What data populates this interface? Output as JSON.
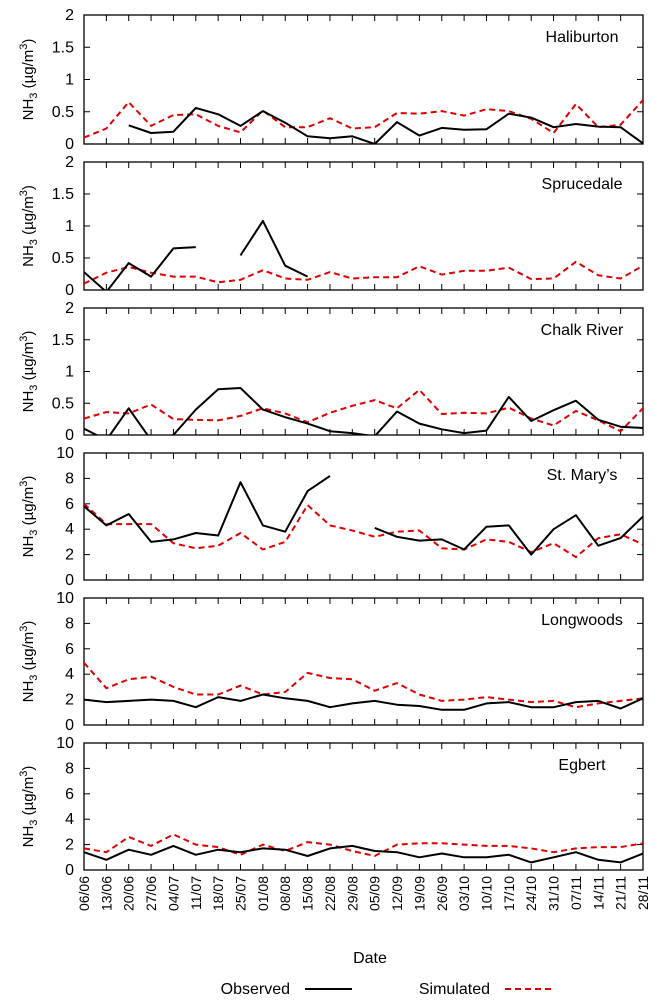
{
  "chart_data": {
    "type": "line",
    "x": [
      "06/06",
      "13/06",
      "20/06",
      "27/06",
      "04/07",
      "11/07",
      "18/07",
      "25/07",
      "01/08",
      "08/08",
      "15/08",
      "22/08",
      "29/08",
      "05/09",
      "12/09",
      "19/09",
      "26/09",
      "03/10",
      "10/10",
      "17/10",
      "24/10",
      "31/10",
      "07/11",
      "14/11",
      "21/11",
      "28/11"
    ],
    "xlabel": "Date",
    "legend": {
      "position": "bottom",
      "series": [
        {
          "name": "Observed",
          "color": "#000000",
          "dash": "solid"
        },
        {
          "name": "Simulated",
          "color": "#dd0000",
          "dash": "dashed"
        }
      ]
    },
    "panels": [
      {
        "site": "Haliburton",
        "ylabel_main": "NH",
        "ylabel_sub": "3",
        "ylabel_unit": " (µg/m",
        "ylabel_sup": "3",
        "ylabel_close": ")",
        "ylim": [
          0,
          2
        ],
        "yticks": [
          "0",
          "0.5",
          "1",
          "1.5",
          "2"
        ],
        "yvals": [
          0,
          0.5,
          1,
          1.5,
          2
        ],
        "observed": [
          null,
          null,
          0.29,
          0.17,
          0.19,
          0.56,
          0.46,
          0.28,
          0.51,
          0.33,
          0.12,
          0.09,
          0.12,
          0,
          0.34,
          0.13,
          0.25,
          0.22,
          0.23,
          0.47,
          0.41,
          0.26,
          0.31,
          0.27,
          0.26,
          0.01
        ],
        "simulated": [
          0.1,
          0.24,
          0.65,
          0.28,
          0.45,
          0.46,
          0.28,
          0.18,
          0.52,
          0.26,
          0.26,
          0.4,
          0.24,
          0.26,
          0.48,
          0.47,
          0.51,
          0.44,
          0.54,
          0.51,
          0.39,
          0.17,
          0.62,
          0.26,
          0.3,
          0.68
        ]
      },
      {
        "site": "Sprucedale",
        "ylabel_main": "NH",
        "ylabel_sub": "3",
        "ylabel_unit": " (µg/m",
        "ylabel_sup": "3",
        "ylabel_close": ")",
        "ylim": [
          0,
          2
        ],
        "yticks": [
          "0",
          "0.5",
          "1",
          "1.5",
          "2"
        ],
        "yvals": [
          0,
          0.5,
          1,
          1.5,
          2
        ],
        "observed": [
          0.28,
          -0.03,
          0.42,
          0.21,
          0.65,
          0.67,
          null,
          0.54,
          1.08,
          0.38,
          0.21,
          null,
          null,
          null,
          null,
          null,
          null,
          null,
          null,
          null,
          null,
          null,
          null,
          null,
          null,
          null
        ],
        "simulated": [
          0.1,
          0.27,
          0.36,
          0.27,
          0.21,
          0.21,
          0.12,
          0.16,
          0.31,
          0.18,
          0.16,
          0.28,
          0.18,
          0.2,
          0.2,
          0.37,
          0.24,
          0.3,
          0.3,
          0.35,
          0.17,
          0.18,
          0.44,
          0.23,
          0.18,
          0.38
        ]
      },
      {
        "site": "Chalk River",
        "ylabel_main": "NH",
        "ylabel_sub": "3",
        "ylabel_unit": " (µg/m",
        "ylabel_sup": "3",
        "ylabel_close": ")",
        "ylim": [
          0,
          2
        ],
        "yticks": [
          "0",
          "0.5",
          "1",
          "1.5",
          "2"
        ],
        "yvals": [
          0,
          0.5,
          1,
          1.5,
          2
        ],
        "observed": [
          0.1,
          -0.08,
          0.42,
          -0.08,
          0,
          0.4,
          0.72,
          0.74,
          0.4,
          0.28,
          0.18,
          0.06,
          0.03,
          -0.02,
          0.37,
          0.18,
          0.09,
          0.03,
          0.07,
          0.6,
          0.22,
          0.39,
          0.54,
          0.24,
          0.13,
          0.11
        ],
        "simulated": [
          0.26,
          0.36,
          0.34,
          0.48,
          0.25,
          0.24,
          0.23,
          0.3,
          0.42,
          0.34,
          0.2,
          0.35,
          0.46,
          0.55,
          0.42,
          0.71,
          0.33,
          0.35,
          0.34,
          0.43,
          0.26,
          0.15,
          0.38,
          0.23,
          0.06,
          0.42
        ]
      },
      {
        "site": "St. Mary’s",
        "ylabel_main": "NH",
        "ylabel_sub": "3",
        "ylabel_unit": " (µg/m",
        "ylabel_sup": "3",
        "ylabel_close": ")",
        "ylim": [
          0,
          10
        ],
        "yticks": [
          "0",
          "2",
          "4",
          "6",
          "8",
          "10"
        ],
        "yvals": [
          0,
          2,
          4,
          6,
          8,
          10
        ],
        "observed": [
          5.8,
          4.3,
          5.2,
          3.0,
          3.2,
          3.7,
          3.5,
          7.7,
          4.3,
          3.8,
          7.0,
          8.2,
          null,
          4.1,
          3.4,
          3.1,
          3.2,
          2.4,
          4.2,
          4.3,
          2.0,
          4.0,
          5.1,
          2.7,
          3.3,
          5.0
        ],
        "simulated": [
          6.0,
          4.4,
          4.4,
          4.4,
          2.9,
          2.5,
          2.7,
          3.7,
          2.4,
          3.0,
          5.9,
          4.3,
          3.9,
          3.4,
          3.8,
          3.9,
          2.5,
          2.4,
          3.2,
          3.0,
          2.2,
          2.9,
          1.8,
          3.3,
          3.6,
          2.8
        ]
      },
      {
        "site": "Longwoods",
        "ylabel_main": "NH",
        "ylabel_sub": "3",
        "ylabel_unit": " (µg/m",
        "ylabel_sup": "3",
        "ylabel_close": ")",
        "ylim": [
          0,
          10
        ],
        "yticks": [
          "0",
          "2",
          "4",
          "6",
          "8",
          "10"
        ],
        "yvals": [
          0,
          2,
          4,
          6,
          8,
          10
        ],
        "observed": [
          2.0,
          1.8,
          1.9,
          2.0,
          1.9,
          1.4,
          2.2,
          1.9,
          2.4,
          2.1,
          1.9,
          1.4,
          1.7,
          1.9,
          1.6,
          1.5,
          1.2,
          1.2,
          1.7,
          1.8,
          1.4,
          1.4,
          1.8,
          1.9,
          1.3,
          2.1
        ],
        "simulated": [
          4.9,
          2.9,
          3.6,
          3.8,
          3.0,
          2.4,
          2.4,
          3.1,
          2.4,
          2.6,
          4.1,
          3.7,
          3.6,
          2.7,
          3.3,
          2.4,
          1.9,
          2.0,
          2.2,
          2.0,
          1.8,
          1.9,
          1.4,
          1.7,
          1.9,
          2.1
        ]
      },
      {
        "site": "Egbert",
        "ylabel_main": "NH",
        "ylabel_sub": "3",
        "ylabel_unit": " (µg/m",
        "ylabel_sup": "3",
        "ylabel_close": ")",
        "ylim": [
          0,
          10
        ],
        "yticks": [
          "0",
          "2",
          "4",
          "6",
          "8",
          "10"
        ],
        "yvals": [
          0,
          2,
          4,
          6,
          8,
          10
        ],
        "observed": [
          1.4,
          0.8,
          1.6,
          1.2,
          1.9,
          1.2,
          1.6,
          1.4,
          1.7,
          1.6,
          1.1,
          1.7,
          1.9,
          1.5,
          1.4,
          1.0,
          1.3,
          1.0,
          1.0,
          1.2,
          0.6,
          1.0,
          1.4,
          0.8,
          0.6,
          1.3
        ],
        "simulated": [
          1.7,
          1.4,
          2.6,
          1.9,
          2.8,
          2.0,
          1.8,
          1.2,
          2.0,
          1.5,
          2.2,
          2.0,
          1.5,
          1.1,
          2.0,
          2.1,
          2.1,
          2.0,
          1.9,
          1.9,
          1.7,
          1.4,
          1.7,
          1.8,
          1.8,
          2.1
        ]
      }
    ]
  }
}
